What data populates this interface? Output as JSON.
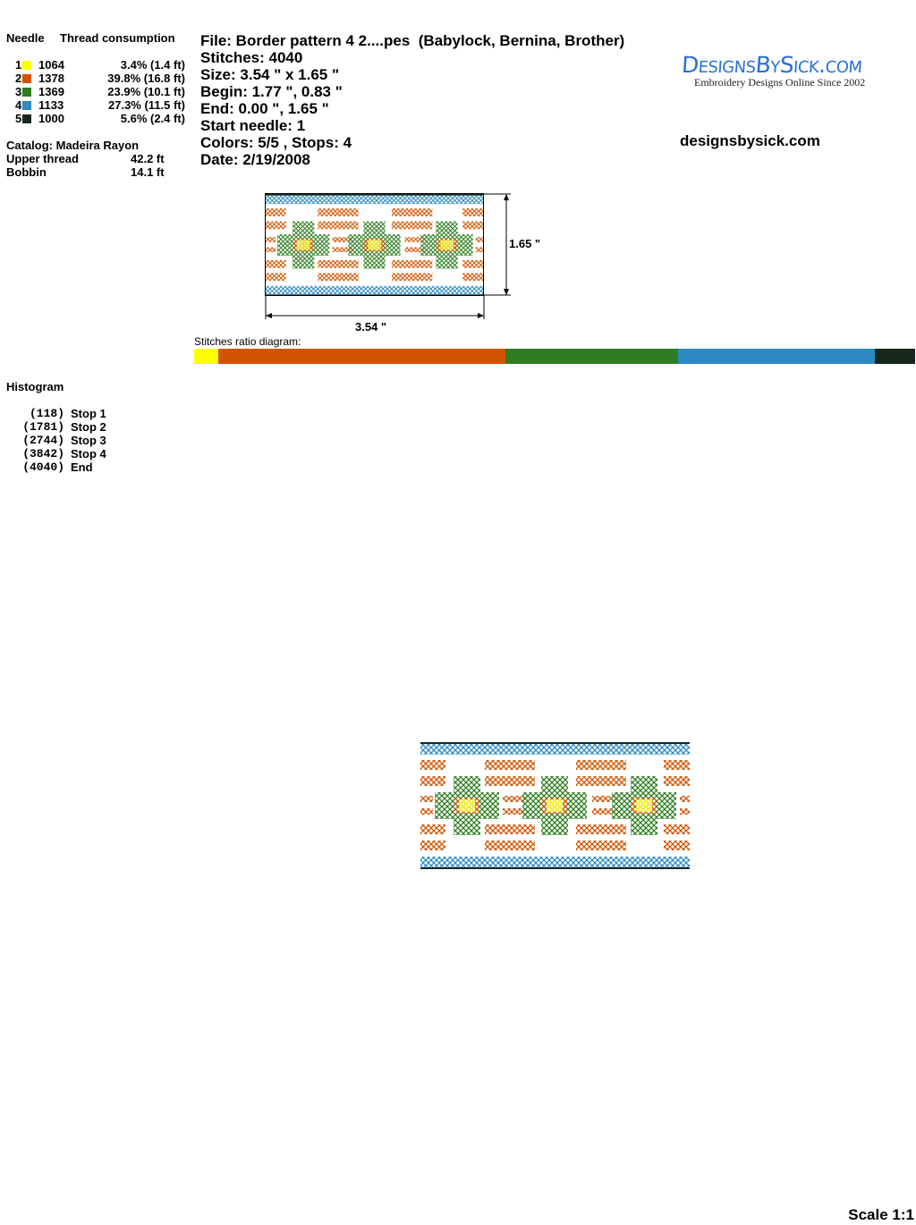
{
  "threads": {
    "needle_header": "Needle",
    "consumption_header": "Thread consumption",
    "rows": [
      {
        "needle": "1",
        "color": "#ffff00",
        "code": "1064",
        "consumption": "3.4% (1.4 ft)",
        "percent": 3.4
      },
      {
        "needle": "2",
        "color": "#d35400",
        "code": "1378",
        "consumption": "39.8% (16.8 ft)",
        "percent": 39.8
      },
      {
        "needle": "3",
        "color": "#2e7d20",
        "code": "1369",
        "consumption": "23.9% (10.1 ft)",
        "percent": 23.9
      },
      {
        "needle": "4",
        "color": "#2d8ac2",
        "code": "1133",
        "consumption": "27.3% (11.5 ft)",
        "percent": 27.3
      },
      {
        "needle": "5",
        "color": "#16281b",
        "code": "1000",
        "consumption": "5.6% (2.4 ft)",
        "percent": 5.6
      }
    ],
    "catalog": "Catalog: Madeira Rayon",
    "upper_label": "Upper thread",
    "upper_value": "42.2 ft",
    "bobbin_label": "Bobbin",
    "bobbin_value": "14.1 ft"
  },
  "info": {
    "file": "File: Border pattern 4 2....pes  (Babylock, Bernina, Brother)",
    "stitches": "Stitches: 4040",
    "size": "Size: 3.54 \" x 1.65 \"",
    "begin": "Begin: 1.77 \", 0.83 \"",
    "end": "End: 0.00 \", 1.65 \"",
    "start_needle": "Start needle: 1",
    "colors_stops": "Colors: 5/5 , Stops: 4",
    "date": "Date: 2/19/2008"
  },
  "brand": {
    "logo_text": "DesignsBySick.com",
    "logo_tagline": "Embroidery Designs Online Since 2002",
    "website": "designsbysick.com"
  },
  "preview": {
    "height_label": "1.65 \"",
    "width_label": "3.54 \""
  },
  "ratio": {
    "label": "Stitches ratio diagram:"
  },
  "histogram": {
    "title": "Histogram",
    "items": [
      {
        "count": "(118)",
        "label": "Stop 1"
      },
      {
        "count": "(1781)",
        "label": "Stop 2"
      },
      {
        "count": "(2744)",
        "label": "Stop 3"
      },
      {
        "count": "(3842)",
        "label": "Stop 4"
      },
      {
        "count": "(4040)",
        "label": "End"
      }
    ]
  },
  "scale": "Scale 1:1"
}
